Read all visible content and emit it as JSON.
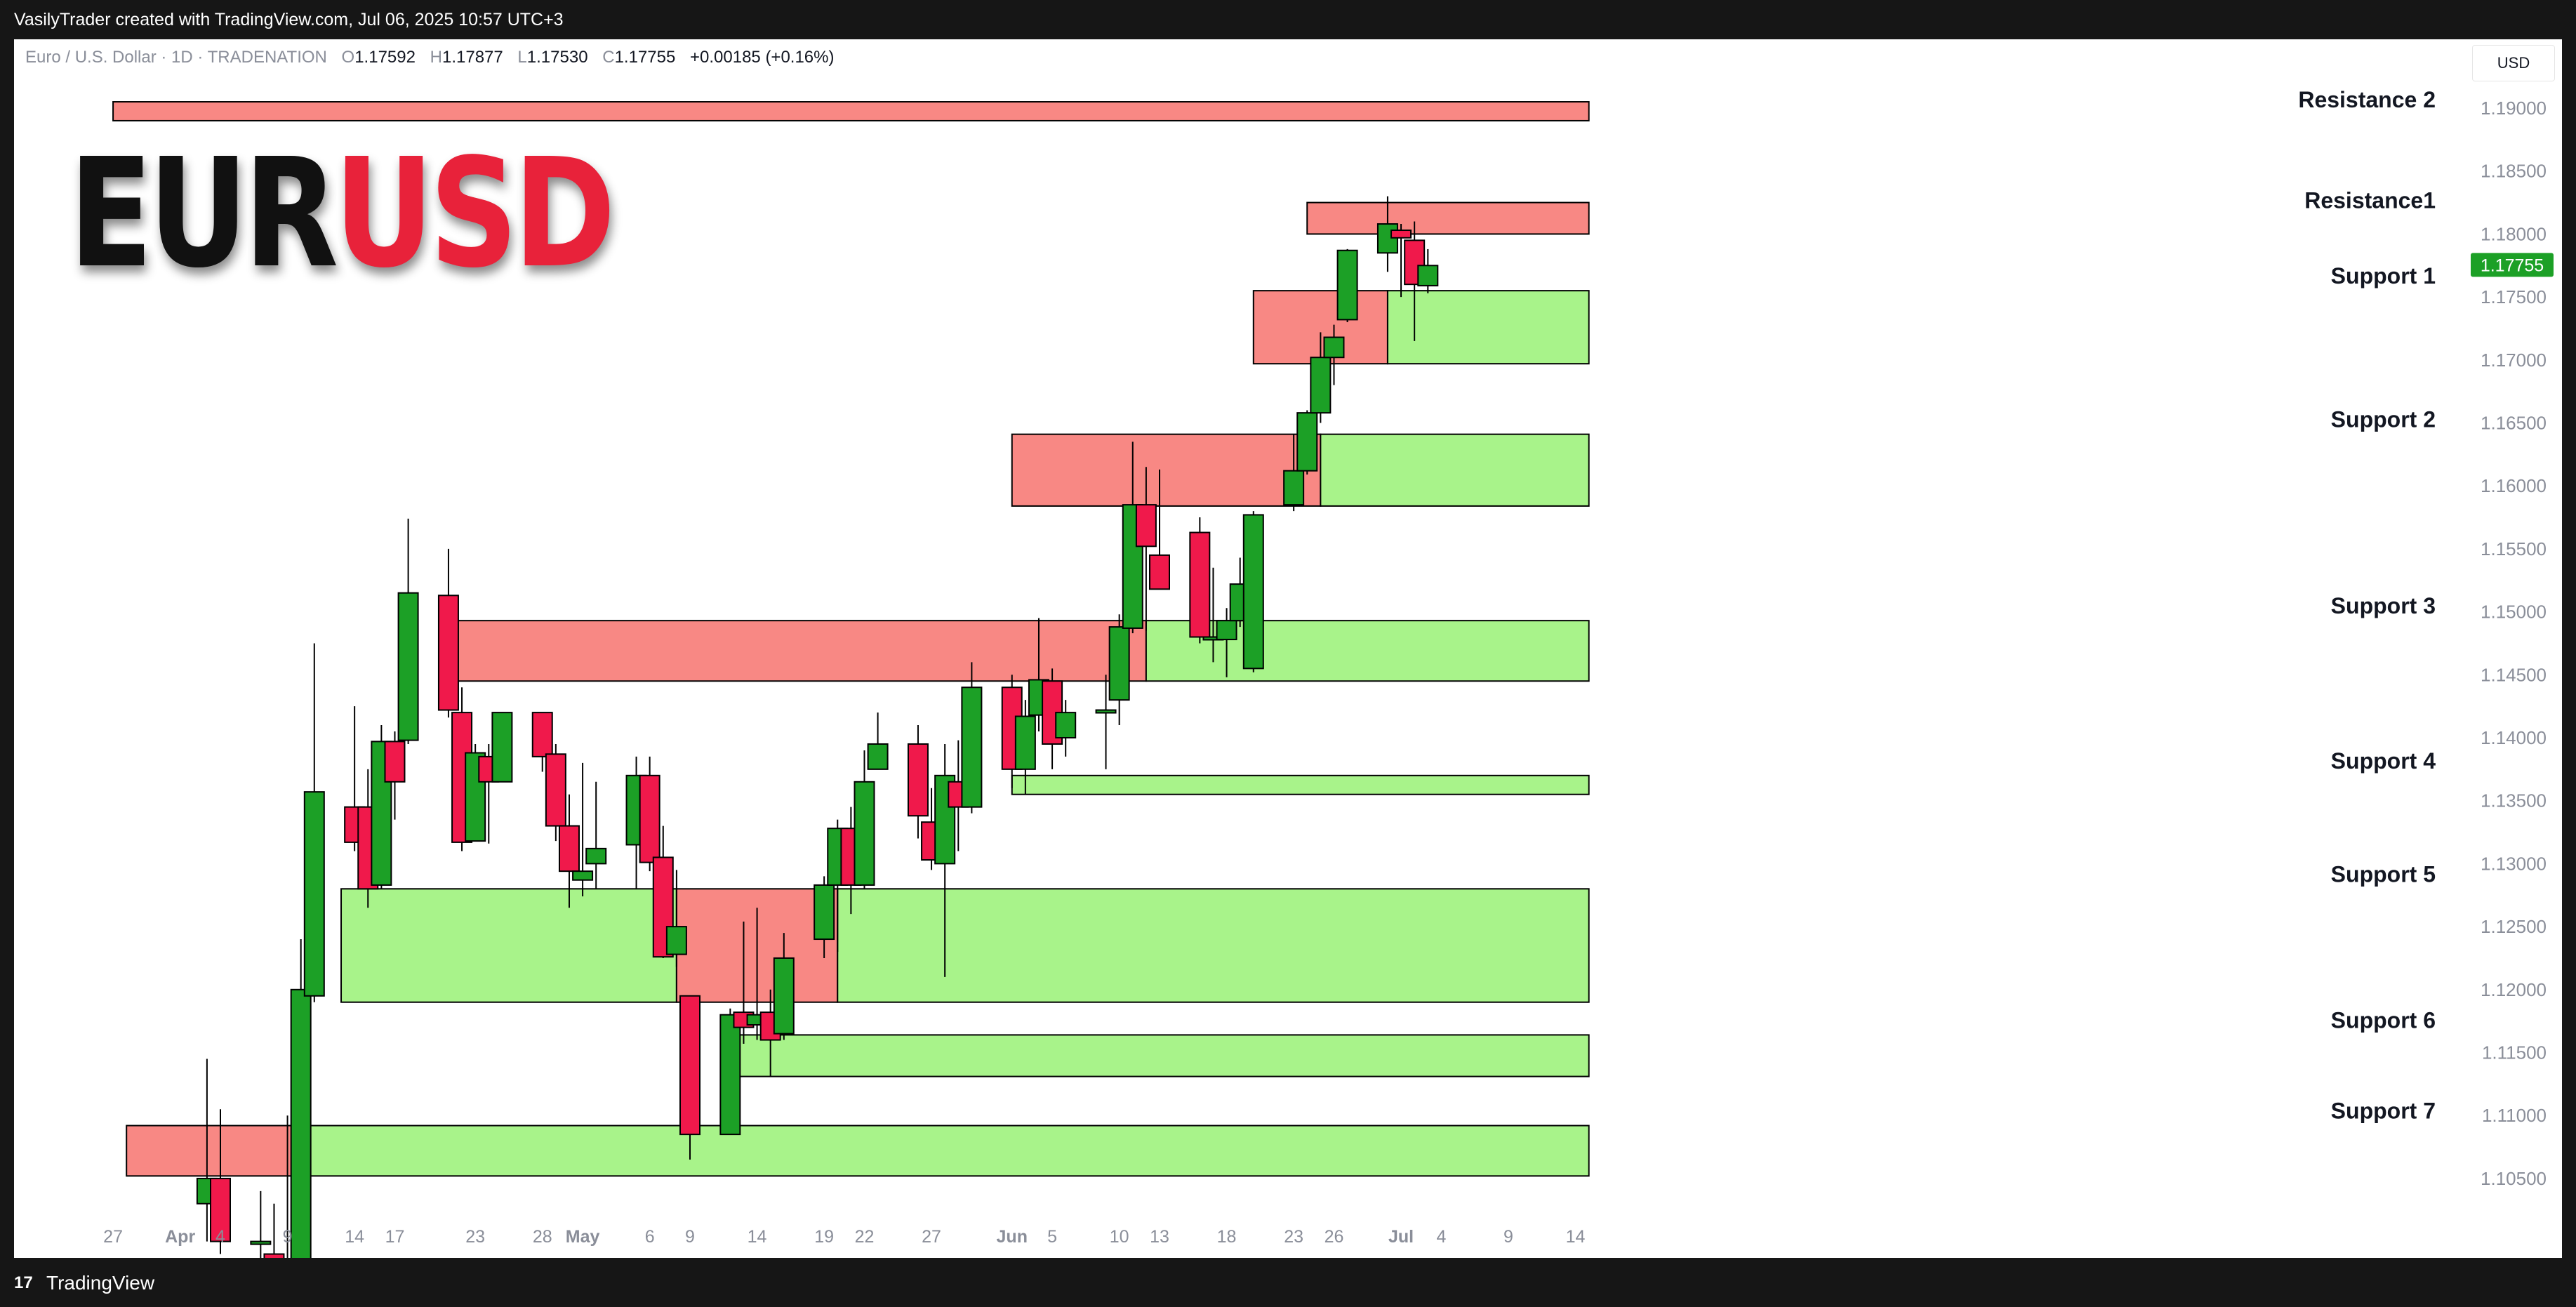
{
  "header": {
    "created_by": "VasilyTrader created with TradingView.com, Jul 06, 2025 10:57 UTC+3"
  },
  "legend": {
    "symbol": "Euro / U.S. Dollar · 1D · TRADENATION",
    "o_label": "O",
    "o_value": "1.17592",
    "h_label": "H",
    "h_value": "1.17877",
    "l_label": "L",
    "l_value": "1.17530",
    "c_label": "C",
    "c_value": "1.17755",
    "change": "+0.00185 (+0.16%)"
  },
  "currency_button": "USD",
  "logo": {
    "part1": "EUR",
    "part2": "USD"
  },
  "footer": {
    "brand": "TradingView",
    "brand_icon": "tradingview-logo-icon"
  },
  "colors": {
    "up": "#1ca026",
    "down": "#f0194b",
    "support_zone": "#a8f38a",
    "resistance_zone": "#f88884",
    "price_tag": "#1ca026"
  },
  "chart_data": {
    "type": "candlestick",
    "instrument": "EURUSD",
    "timeframe": "1D",
    "current_price": "1.17755",
    "y_ticks": [
      "1.19000",
      "1.18500",
      "1.18000",
      "1.17500",
      "1.17000",
      "1.16500",
      "1.16000",
      "1.15500",
      "1.15000",
      "1.14500",
      "1.14000",
      "1.13500",
      "1.13000",
      "1.12500",
      "1.12000",
      "1.11500",
      "1.11000",
      "1.10500"
    ],
    "x_ticks": [
      "27",
      "Apr",
      "4",
      "9",
      "14",
      "17",
      "23",
      "28",
      "May",
      "6",
      "9",
      "14",
      "19",
      "22",
      "27",
      "Jun",
      "5",
      "10",
      "13",
      "18",
      "23",
      "26",
      "Jul",
      "4",
      "9",
      "14"
    ],
    "zone_labels": [
      {
        "label": "Resistance 2",
        "price": 1.1895
      },
      {
        "label": "Resistance1",
        "price": 1.1815
      },
      {
        "label": "Support 1",
        "price": 1.1755
      },
      {
        "label": "Support 2",
        "price": 1.1641
      },
      {
        "label": "Support 3",
        "price": 1.1493
      },
      {
        "label": "Support 4",
        "price": 1.137
      },
      {
        "label": "Support 5",
        "price": 1.128
      },
      {
        "label": "Support 6",
        "price": 1.1164
      },
      {
        "label": "Support 7",
        "price": 1.1092
      }
    ],
    "zones": [
      {
        "kind": "resistance",
        "from": 1.189,
        "to": 1.1905,
        "start": "Mar 27",
        "end": "Jul 15"
      },
      {
        "kind": "resistance",
        "from": 1.18,
        "to": 1.1825,
        "start": "Jun 24",
        "end": "Jul 15"
      },
      {
        "kind": "resistance",
        "from": 1.1697,
        "to": 1.1755,
        "start": "Jun 20",
        "end": "Jun 30"
      },
      {
        "kind": "support",
        "from": 1.1697,
        "to": 1.1755,
        "start": "Jun 30",
        "end": "Jul 15"
      },
      {
        "kind": "resistance",
        "from": 1.1584,
        "to": 1.1641,
        "start": "Jun 2",
        "end": "Jun 25"
      },
      {
        "kind": "support",
        "from": 1.1584,
        "to": 1.1641,
        "start": "Jun 25",
        "end": "Jul 15"
      },
      {
        "kind": "resistance",
        "from": 1.1445,
        "to": 1.1493,
        "start": "Apr 21",
        "end": "Jun 12"
      },
      {
        "kind": "support",
        "from": 1.1445,
        "to": 1.1493,
        "start": "Jun 12",
        "end": "Jul 15"
      },
      {
        "kind": "support",
        "from": 1.1355,
        "to": 1.137,
        "start": "Jun 2",
        "end": "Jul 15"
      },
      {
        "kind": "support",
        "from": 1.119,
        "to": 1.128,
        "start": "Apr 13",
        "end": "May 8"
      },
      {
        "kind": "resistance",
        "from": 1.119,
        "to": 1.128,
        "start": "May 8",
        "end": "May 20"
      },
      {
        "kind": "support",
        "from": 1.119,
        "to": 1.128,
        "start": "May 20",
        "end": "Jul 15"
      },
      {
        "kind": "support",
        "from": 1.1131,
        "to": 1.1164,
        "start": "May 12",
        "end": "Jul 15"
      },
      {
        "kind": "resistance",
        "from": 1.1052,
        "to": 1.1092,
        "start": "Mar 28",
        "end": "Apr 10"
      },
      {
        "kind": "support",
        "from": 1.1052,
        "to": 1.1092,
        "start": "Apr 10",
        "end": "Jul 15"
      }
    ],
    "candles": [
      {
        "d": "Apr 3",
        "o": 1.103,
        "h": 1.1145,
        "l": 1.1,
        "c": 1.105
      },
      {
        "d": "Apr 4",
        "o": 1.105,
        "h": 1.1105,
        "l": 1.099,
        "c": 1.1
      },
      {
        "d": "Apr 7",
        "o": 1.1,
        "h": 1.104,
        "l": 1.098,
        "c": 1.1
      },
      {
        "d": "Apr 8",
        "o": 1.099,
        "h": 1.103,
        "l": 1.096,
        "c": 1.098
      },
      {
        "d": "Apr 9",
        "o": 1.097,
        "h": 1.11,
        "l": 1.095,
        "c": 1.096
      },
      {
        "d": "Apr 10",
        "o": 1.096,
        "h": 1.124,
        "l": 1.095,
        "c": 1.12
      },
      {
        "d": "Apr 11",
        "o": 1.1195,
        "h": 1.1475,
        "l": 1.119,
        "c": 1.1357
      },
      {
        "d": "Apr 14",
        "o": 1.1345,
        "h": 1.1425,
        "l": 1.131,
        "c": 1.1317
      },
      {
        "d": "Apr 15",
        "o": 1.1345,
        "h": 1.1375,
        "l": 1.1265,
        "c": 1.128
      },
      {
        "d": "Apr 16",
        "o": 1.1283,
        "h": 1.141,
        "l": 1.128,
        "c": 1.1397
      },
      {
        "d": "Apr 17",
        "o": 1.1397,
        "h": 1.1405,
        "l": 1.1335,
        "c": 1.1365
      },
      {
        "d": "Apr 18",
        "o": 1.1398,
        "h": 1.1574,
        "l": 1.1395,
        "c": 1.1515
      },
      {
        "d": "Apr 21",
        "o": 1.1513,
        "h": 1.155,
        "l": 1.1416,
        "c": 1.1422
      },
      {
        "d": "Apr 22",
        "o": 1.142,
        "h": 1.144,
        "l": 1.131,
        "c": 1.1317
      },
      {
        "d": "Apr 23",
        "o": 1.1318,
        "h": 1.1395,
        "l": 1.1318,
        "c": 1.1388
      },
      {
        "d": "Apr 24",
        "o": 1.1385,
        "h": 1.1395,
        "l": 1.1316,
        "c": 1.1365
      },
      {
        "d": "Apr 25",
        "o": 1.1365,
        "h": 1.142,
        "l": 1.1365,
        "c": 1.142
      },
      {
        "d": "Apr 28",
        "o": 1.142,
        "h": 1.142,
        "l": 1.1373,
        "c": 1.1385
      },
      {
        "d": "Apr 29",
        "o": 1.1387,
        "h": 1.1395,
        "l": 1.1318,
        "c": 1.133
      },
      {
        "d": "Apr 30",
        "o": 1.133,
        "h": 1.1355,
        "l": 1.1265,
        "c": 1.1294
      },
      {
        "d": "May 1",
        "o": 1.1287,
        "h": 1.138,
        "l": 1.1274,
        "c": 1.1294
      },
      {
        "d": "May 2",
        "o": 1.13,
        "h": 1.1365,
        "l": 1.128,
        "c": 1.1312
      },
      {
        "d": "May 5",
        "o": 1.1315,
        "h": 1.1385,
        "l": 1.128,
        "c": 1.137
      },
      {
        "d": "May 6",
        "o": 1.137,
        "h": 1.1385,
        "l": 1.1294,
        "c": 1.1301
      },
      {
        "d": "May 7",
        "o": 1.1305,
        "h": 1.133,
        "l": 1.1225,
        "c": 1.1226
      },
      {
        "d": "May 8",
        "o": 1.1228,
        "h": 1.1295,
        "l": 1.1218,
        "c": 1.125
      },
      {
        "d": "May 9",
        "o": 1.1195,
        "h": 1.1195,
        "l": 1.1065,
        "c": 1.1085
      },
      {
        "d": "May 12",
        "o": 1.1085,
        "h": 1.1185,
        "l": 1.1085,
        "c": 1.118
      },
      {
        "d": "May 13",
        "o": 1.1182,
        "h": 1.1254,
        "l": 1.1157,
        "c": 1.117
      },
      {
        "d": "May 14",
        "o": 1.1172,
        "h": 1.1265,
        "l": 1.116,
        "c": 1.118
      },
      {
        "d": "May 15",
        "o": 1.1182,
        "h": 1.12,
        "l": 1.1131,
        "c": 1.116
      },
      {
        "d": "May 16",
        "o": 1.1165,
        "h": 1.1245,
        "l": 1.116,
        "c": 1.1225
      },
      {
        "d": "May 19",
        "o": 1.124,
        "h": 1.129,
        "l": 1.1225,
        "c": 1.1283
      },
      {
        "d": "May 20",
        "o": 1.1283,
        "h": 1.1335,
        "l": 1.123,
        "c": 1.1328
      },
      {
        "d": "May 21",
        "o": 1.1328,
        "h": 1.1345,
        "l": 1.126,
        "c": 1.1283
      },
      {
        "d": "May 22",
        "o": 1.1283,
        "h": 1.139,
        "l": 1.128,
        "c": 1.1365
      },
      {
        "d": "May 23",
        "o": 1.1375,
        "h": 1.142,
        "l": 1.1375,
        "c": 1.1395
      },
      {
        "d": "May 26",
        "o": 1.1395,
        "h": 1.141,
        "l": 1.132,
        "c": 1.1338
      },
      {
        "d": "May 27",
        "o": 1.1333,
        "h": 1.136,
        "l": 1.1295,
        "c": 1.1303
      },
      {
        "d": "May 28",
        "o": 1.13,
        "h": 1.1395,
        "l": 1.121,
        "c": 1.137
      },
      {
        "d": "May 29",
        "o": 1.1365,
        "h": 1.1398,
        "l": 1.131,
        "c": 1.1345
      },
      {
        "d": "May 30",
        "o": 1.1345,
        "h": 1.146,
        "l": 1.134,
        "c": 1.144
      },
      {
        "d": "Jun 2",
        "o": 1.144,
        "h": 1.145,
        "l": 1.136,
        "c": 1.1375
      },
      {
        "d": "Jun 3",
        "o": 1.1375,
        "h": 1.143,
        "l": 1.1355,
        "c": 1.1417
      },
      {
        "d": "Jun 4",
        "o": 1.1418,
        "h": 1.1495,
        "l": 1.1405,
        "c": 1.1446
      },
      {
        "d": "Jun 5",
        "o": 1.1445,
        "h": 1.1455,
        "l": 1.1375,
        "c": 1.1395
      },
      {
        "d": "Jun 6",
        "o": 1.14,
        "h": 1.143,
        "l": 1.1385,
        "c": 1.142
      },
      {
        "d": "Jun 9",
        "o": 1.142,
        "h": 1.145,
        "l": 1.1375,
        "c": 1.1422
      },
      {
        "d": "Jun 10",
        "o": 1.143,
        "h": 1.1498,
        "l": 1.141,
        "c": 1.1488
      },
      {
        "d": "Jun 11",
        "o": 1.1487,
        "h": 1.1635,
        "l": 1.1483,
        "c": 1.1585
      },
      {
        "d": "Jun 12",
        "o": 1.1585,
        "h": 1.1615,
        "l": 1.1485,
        "c": 1.1552
      },
      {
        "d": "Jun 13",
        "o": 1.1545,
        "h": 1.1613,
        "l": 1.1525,
        "c": 1.1518
      },
      {
        "d": "Jun 16",
        "o": 1.1563,
        "h": 1.1575,
        "l": 1.1475,
        "c": 1.148
      },
      {
        "d": "Jun 17",
        "o": 1.148,
        "h": 1.1535,
        "l": 1.146,
        "c": 1.148
      },
      {
        "d": "Jun 18",
        "o": 1.1478,
        "h": 1.1503,
        "l": 1.1448,
        "c": 1.1493
      },
      {
        "d": "Jun 19",
        "o": 1.1493,
        "h": 1.1543,
        "l": 1.1488,
        "c": 1.1522
      },
      {
        "d": "Jun 20",
        "o": 1.1455,
        "h": 1.158,
        "l": 1.1452,
        "c": 1.1577
      },
      {
        "d": "Jun 23",
        "o": 1.1585,
        "h": 1.1641,
        "l": 1.158,
        "c": 1.1612
      },
      {
        "d": "Jun 24",
        "o": 1.1612,
        "h": 1.166,
        "l": 1.1609,
        "c": 1.1658
      },
      {
        "d": "Jun 25",
        "o": 1.1658,
        "h": 1.1722,
        "l": 1.165,
        "c": 1.1702
      },
      {
        "d": "Jun 26",
        "o": 1.1702,
        "h": 1.1728,
        "l": 1.168,
        "c": 1.1718
      },
      {
        "d": "Jun 27",
        "o": 1.1732,
        "h": 1.1788,
        "l": 1.173,
        "c": 1.1787
      },
      {
        "d": "Jun 30",
        "o": 1.1785,
        "h": 1.183,
        "l": 1.177,
        "c": 1.1808
      },
      {
        "d": "Jul 1",
        "o": 1.1803,
        "h": 1.1808,
        "l": 1.175,
        "c": 1.1797
      },
      {
        "d": "Jul 2",
        "o": 1.1795,
        "h": 1.181,
        "l": 1.1715,
        "c": 1.176
      },
      {
        "d": "Jul 3",
        "o": 1.1759,
        "h": 1.1788,
        "l": 1.1753,
        "c": 1.1775
      }
    ]
  }
}
